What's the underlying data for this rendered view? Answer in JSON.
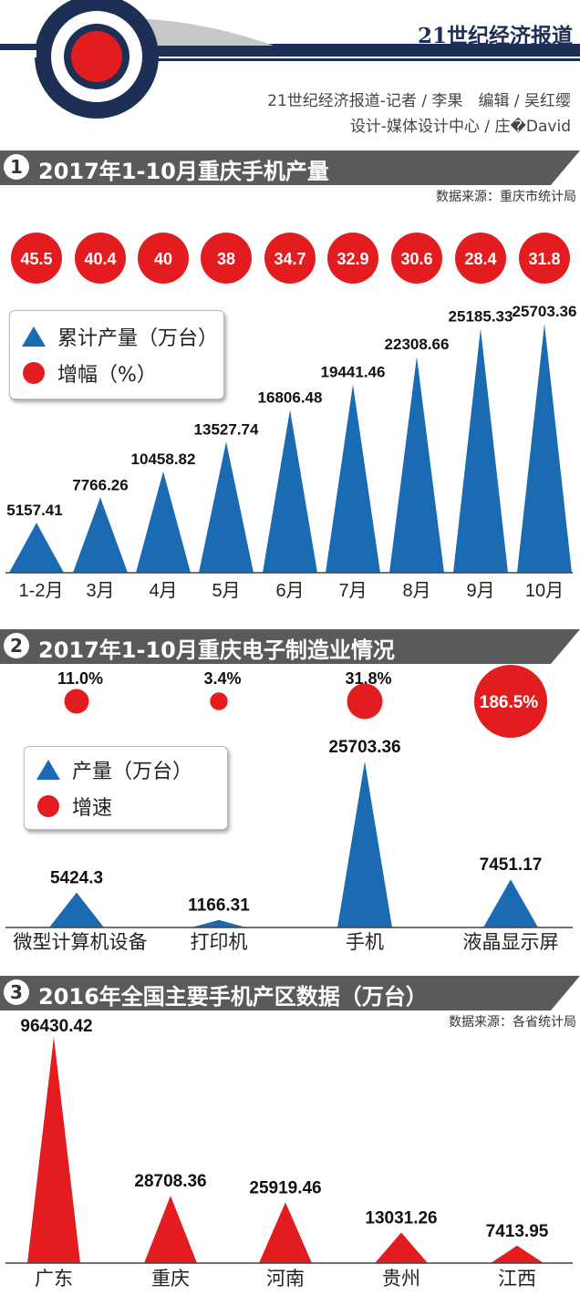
{
  "header": {
    "paper_name": "21世纪经济报道",
    "credit_line1": "21世纪经济报道-记者 / 李果　编辑 / 吴红缨",
    "credit_line2": "设计-媒体设计中心 / 庄�David"
  },
  "sections": [
    {
      "num": "1",
      "title": "2017年1-10月重庆手机产量",
      "source": "数据来源：重庆市统计局"
    },
    {
      "num": "2",
      "title": "2017年1-10月重庆电子制造业情况",
      "source": ""
    },
    {
      "num": "3",
      "title": "2016年全国主要手机产区数据（万台）",
      "source": "数据来源：各省统计局"
    }
  ],
  "legend1": {
    "tri_label": "累计产量（万台）",
    "dot_label": "增幅（%）"
  },
  "legend2": {
    "tri_label": "产量（万台）",
    "dot_label": "增速"
  },
  "colors": {
    "navy": "#1d2f55",
    "blue": "#1b6bb3",
    "red": "#e31d1f",
    "gray": "#5a5a5a"
  },
  "chart_data": [
    {
      "type": "bar",
      "title": "2017年1-10月重庆手机产量",
      "categories": [
        "1-2月",
        "3月",
        "4月",
        "5月",
        "6月",
        "7月",
        "8月",
        "9月",
        "10月"
      ],
      "series": [
        {
          "name": "累计产量（万台）",
          "values": [
            5157.41,
            7766.26,
            10458.82,
            13527.74,
            16806.48,
            19441.46,
            22308.66,
            25185.33,
            25703.36
          ]
        },
        {
          "name": "增幅（%）",
          "values": [
            45.5,
            40.4,
            40,
            38,
            34.7,
            32.9,
            30.6,
            28.4,
            31.8
          ]
        }
      ],
      "value_labels": [
        "5157.41",
        "7766.26",
        "10458.82",
        "13527.74",
        "16806.48",
        "19441.46",
        "22308.66",
        "25185.33",
        "25703.36"
      ],
      "rate_labels": [
        "45.5",
        "40.4",
        "40",
        "38",
        "34.7",
        "32.9",
        "30.6",
        "28.4",
        "31.8"
      ]
    },
    {
      "type": "bar",
      "title": "2017年1-10月重庆电子制造业情况",
      "categories": [
        "微型计算机设备",
        "打印机",
        "手机",
        "液晶显示屏"
      ],
      "series": [
        {
          "name": "产量（万台）",
          "values": [
            5424.3,
            1166.31,
            25703.36,
            7451.17
          ]
        },
        {
          "name": "增速",
          "values": [
            11.0,
            3.4,
            31.8,
            186.5
          ]
        }
      ],
      "value_labels": [
        "5424.3",
        "1166.31",
        "25703.36",
        "7451.17"
      ],
      "rate_labels": [
        "11.0%",
        "3.4%",
        "31.8%",
        "186.5%"
      ]
    },
    {
      "type": "bar",
      "title": "2016年全国主要手机产区数据（万台）",
      "categories": [
        "广东",
        "重庆",
        "河南",
        "贵州",
        "江西"
      ],
      "series": [
        {
          "values": [
            96430.42,
            28708.36,
            25919.46,
            13031.26,
            7413.95
          ]
        }
      ],
      "value_labels": [
        "96430.42",
        "28708.36",
        "25919.46",
        "13031.26",
        "7413.95"
      ]
    }
  ]
}
